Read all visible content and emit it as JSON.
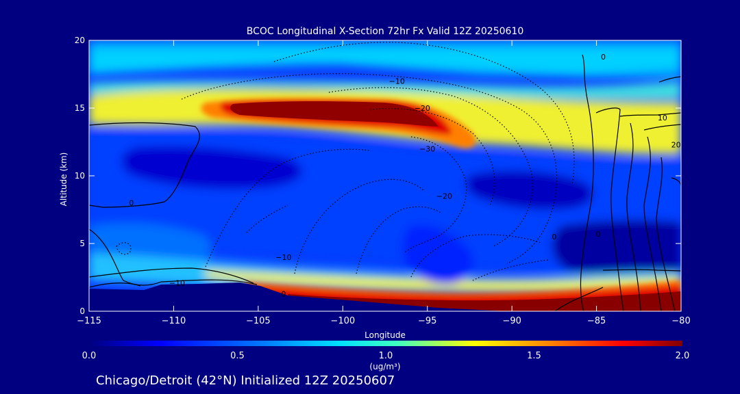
{
  "chart_data": {
    "type": "heatmap",
    "title": "BCOC Longitudinal X-Section 72hr  Fx Valid 12Z 20250610",
    "xlabel": "Longitude",
    "ylabel": "Altitude (km)",
    "xlim": [
      -115,
      -80
    ],
    "ylim": [
      0,
      20
    ],
    "xticks": [
      "−115",
      "−110",
      "−105",
      "−100",
      "−95",
      "−90",
      "−85",
      "−80"
    ],
    "yticks": [
      "0",
      "5",
      "10",
      "15",
      "20"
    ],
    "colorbar": {
      "range": [
        0.0,
        2.0
      ],
      "ticks": [
        "0.0",
        "0.5",
        "1.0",
        "1.5",
        "2.0"
      ],
      "unit_label": "(ug/m³)",
      "colors": [
        "#000080",
        "#0000ff",
        "#0080ff",
        "#00e0ff",
        "#40ffc0",
        "#ffff00",
        "#ff8000",
        "#ff0000",
        "#800000"
      ]
    },
    "contour_labels": [
      {
        "text": "−10",
        "lon": -96.8,
        "alt": 17.0
      },
      {
        "text": "−20",
        "lon": -95.3,
        "alt": 15.0
      },
      {
        "text": "−30",
        "lon": -95.0,
        "alt": 12.0
      },
      {
        "text": "−20",
        "lon": -94.0,
        "alt": 8.5
      },
      {
        "text": "−10",
        "lon": -103.5,
        "alt": 4.0
      },
      {
        "text": "−10",
        "lon": -109.8,
        "alt": 2.1
      },
      {
        "text": "0",
        "lon": -112.5,
        "alt": 8.0
      },
      {
        "text": "0",
        "lon": -103.5,
        "alt": 1.3
      },
      {
        "text": "0",
        "lon": -87.5,
        "alt": 5.5
      },
      {
        "text": "0",
        "lon": -84.6,
        "alt": 18.8
      },
      {
        "text": "0",
        "lon": -84.9,
        "alt": 5.7
      },
      {
        "text": "10",
        "lon": -81.1,
        "alt": 14.3
      },
      {
        "text": "20",
        "lon": -80.3,
        "alt": 12.3
      }
    ]
  },
  "footer": {
    "caption": "Chicago/Detroit (42°N) Initialized 12Z 20250607"
  },
  "colors": {
    "background": "#000080",
    "text": "#ffffff"
  }
}
